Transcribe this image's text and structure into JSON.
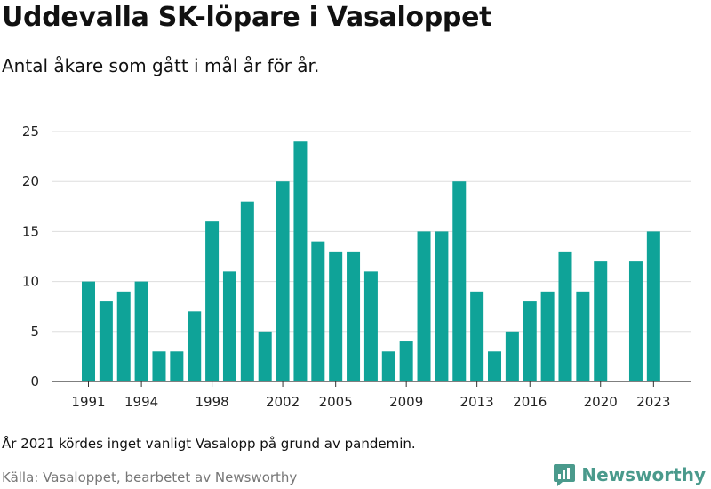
{
  "header": {
    "title": "Uddevalla SK-löpare i Vasaloppet",
    "subtitle": "Antal åkare som gått i mål år för år."
  },
  "footer": {
    "note": "År 2021 kördes inget vanligt Vasalopp på grund av pandemin.",
    "source": "Källa: Vasaloppet, bearbetet av Newsworthy",
    "brand": "Newsworthy"
  },
  "colors": {
    "bar": "#0fa398",
    "grid": "#dddddd",
    "brand": "#4a9a8c"
  },
  "icons": {
    "brand_logo": "newsworthy-logo-icon"
  },
  "chart_data": {
    "type": "bar",
    "title": "Uddevalla SK-löpare i Vasaloppet",
    "subtitle": "Antal åkare som gått i mål år för år.",
    "xlabel": "",
    "ylabel": "",
    "ylim": [
      0,
      25
    ],
    "yticks": [
      0,
      5,
      10,
      15,
      20,
      25
    ],
    "xticks": [
      "1991",
      "1994",
      "1998",
      "2002",
      "2005",
      "2009",
      "2013",
      "2016",
      "2020",
      "2023"
    ],
    "grid": true,
    "categories": [
      "1991",
      "1992",
      "1993",
      "1994",
      "1995",
      "1996",
      "1997",
      "1998",
      "1999",
      "2000",
      "2001",
      "2002",
      "2003",
      "2004",
      "2005",
      "2006",
      "2007",
      "2008",
      "2009",
      "2010",
      "2011",
      "2012",
      "2013",
      "2014",
      "2015",
      "2016",
      "2017",
      "2018",
      "2019",
      "2020",
      "2021",
      "2022",
      "2023"
    ],
    "values": [
      10,
      8,
      9,
      10,
      3,
      3,
      7,
      16,
      11,
      18,
      5,
      20,
      24,
      14,
      13,
      13,
      11,
      3,
      4,
      15,
      15,
      20,
      9,
      3,
      5,
      8,
      9,
      13,
      9,
      12,
      null,
      12,
      15
    ]
  }
}
